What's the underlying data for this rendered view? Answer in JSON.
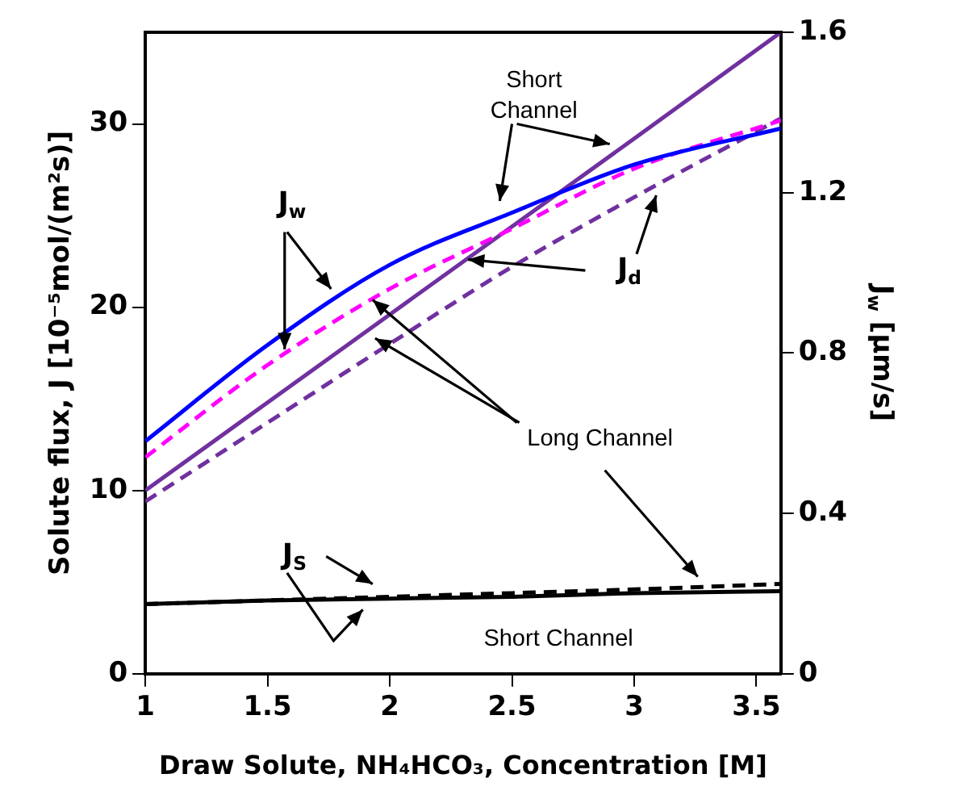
{
  "chart_data": {
    "type": "line",
    "xlabel": "Draw Solute, NH₄HCO₃, Concentration [M]",
    "ylabel": "Solute flux, J [10⁻⁵mol/(m²s)]",
    "y2label": "J$_{w}$ [µm/s]",
    "x": [
      1,
      1.5,
      2,
      2.5,
      3,
      3.6
    ],
    "xlim": [
      1,
      3.6
    ],
    "xticks": [
      1,
      1.5,
      2,
      2.5,
      3,
      3.5
    ],
    "ylim": [
      0,
      35
    ],
    "yticks": [
      0,
      10,
      20,
      30
    ],
    "y2lim": [
      0,
      1.6
    ],
    "y2ticks": [
      0,
      0.4,
      0.8,
      1.2,
      1.6
    ],
    "grid": false,
    "legend": false,
    "marker": "none",
    "series": [
      {
        "color": "#0000ff",
        "axis": "y2",
        "line_style": "solid",
        "values": [
          0.58,
          0.82,
          1.02,
          1.15,
          1.27,
          1.36
        ]
      },
      {
        "color": "#ff00ff",
        "axis": "y2",
        "line_style": "dashed",
        "values": [
          0.54,
          0.77,
          0.96,
          1.11,
          1.26,
          1.38
        ]
      },
      {
        "color": "#7030a0",
        "line_style": "solid",
        "values": [
          10,
          14.8,
          19.6,
          24.4,
          29.2,
          35
        ]
      },
      {
        "color": "#7030a0",
        "line_style": "dashed",
        "values": [
          9.4,
          13.7,
          18,
          22.2,
          26,
          30.3
        ]
      },
      {
        "color": "#000000",
        "line_style": "solid",
        "values": [
          3.8,
          4,
          4.1,
          4.2,
          4.4,
          4.5
        ]
      },
      {
        "color": "#000000",
        "line_style": "dashed",
        "values": [
          3.8,
          4,
          4.2,
          4.4,
          4.6,
          4.9
        ]
      }
    ],
    "annotations": [
      "Short Channel",
      {
        "text": "J$_{w}$",
        "x": 1.57,
        "y": 17.7
      },
      "J$_{d}$",
      {
        "text": "Long Channel",
        "x": 1.93,
        "y": 20.4
      },
      "J$_{S}$",
      "Short Channel"
    ]
  }
}
